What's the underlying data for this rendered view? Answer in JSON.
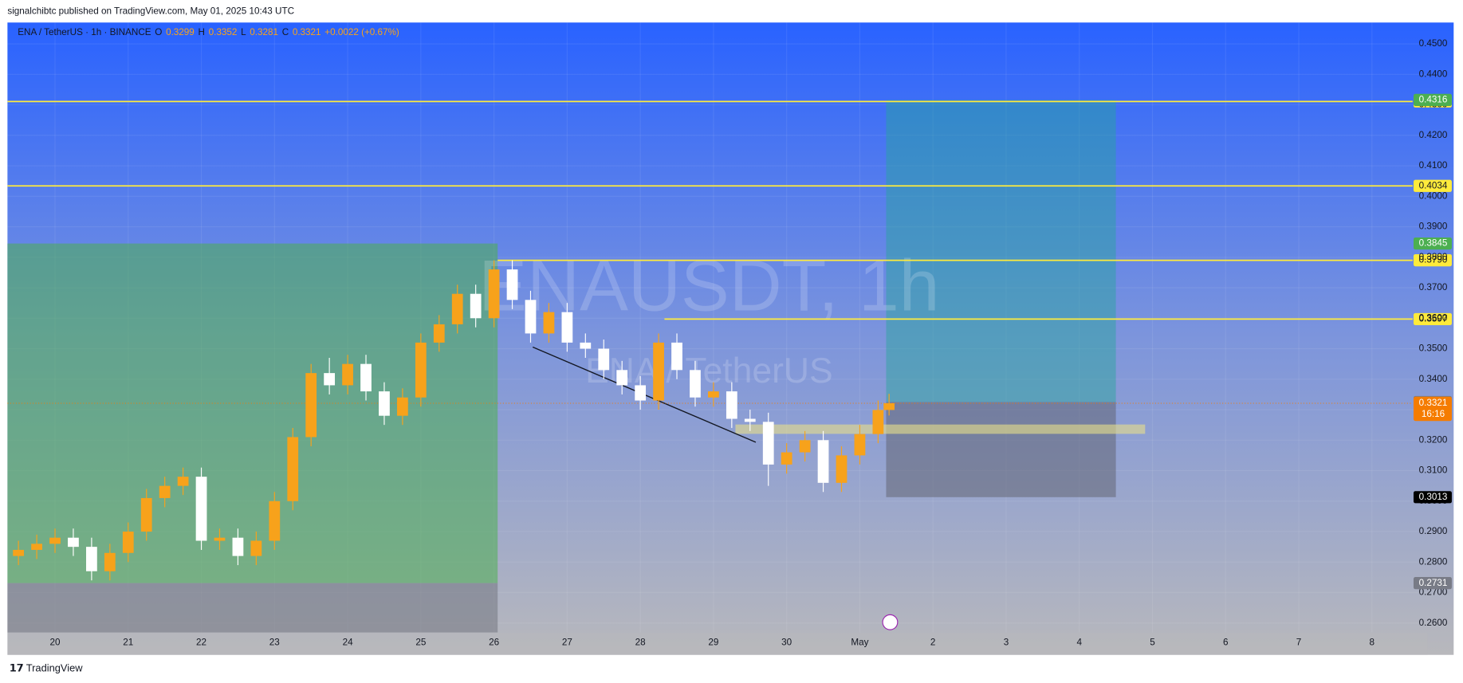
{
  "header": {
    "publisher": "signalchibtc published on TradingView.com, May 01, 2025 10:43 UTC",
    "footer": "TradingView"
  },
  "chart_data": {
    "type": "candlestick",
    "symbol": "ENA / TetherUS · 1h · BINANCE",
    "o_label": "O",
    "h_label": "H",
    "l_label": "L",
    "c_label": "C",
    "change": "+0.0022 (+0.67%)",
    "watermark": "ENAUSDT, 1h",
    "watermark_sub": "ENA / TetherUS",
    "up_color": "#f7a21b",
    "down_color": "#ffffff",
    "x": [
      -0.5,
      -0.25,
      0,
      0.25,
      0.5,
      0.75,
      1,
      1.25,
      1.5,
      1.75,
      2,
      2.25,
      2.5,
      2.75,
      3,
      3.25,
      3.5,
      3.75,
      4,
      4.25,
      4.5,
      4.75,
      5,
      5.25,
      5.5,
      5.75,
      6,
      6.25,
      6.5,
      6.75,
      7,
      7.25,
      7.5,
      7.75,
      8,
      8.25,
      8.5,
      8.75,
      9,
      9.25,
      9.5,
      9.75,
      10,
      10.25,
      10.5,
      10.75,
      11,
      11.25,
      11.4
    ],
    "open": [
      0.282,
      0.284,
      0.286,
      0.288,
      0.285,
      0.277,
      0.283,
      0.29,
      0.301,
      0.305,
      0.308,
      0.287,
      0.288,
      0.282,
      0.287,
      0.3,
      0.321,
      0.342,
      0.338,
      0.345,
      0.336,
      0.328,
      0.334,
      0.352,
      0.358,
      0.368,
      0.36,
      0.376,
      0.366,
      0.355,
      0.362,
      0.352,
      0.35,
      0.343,
      0.338,
      0.333,
      0.352,
      0.343,
      0.334,
      0.336,
      0.327,
      0.326,
      0.312,
      0.316,
      0.32,
      0.306,
      0.315,
      0.322,
      0.3299
    ],
    "high": [
      0.287,
      0.289,
      0.291,
      0.291,
      0.288,
      0.286,
      0.293,
      0.304,
      0.308,
      0.311,
      0.311,
      0.291,
      0.291,
      0.29,
      0.303,
      0.324,
      0.345,
      0.347,
      0.348,
      0.348,
      0.339,
      0.337,
      0.355,
      0.361,
      0.371,
      0.371,
      0.379,
      0.379,
      0.369,
      0.365,
      0.365,
      0.355,
      0.353,
      0.346,
      0.341,
      0.355,
      0.355,
      0.346,
      0.339,
      0.339,
      0.33,
      0.329,
      0.319,
      0.323,
      0.323,
      0.318,
      0.325,
      0.333,
      0.3352
    ],
    "low": [
      0.279,
      0.281,
      0.283,
      0.282,
      0.274,
      0.274,
      0.28,
      0.287,
      0.298,
      0.302,
      0.284,
      0.284,
      0.279,
      0.279,
      0.284,
      0.297,
      0.318,
      0.335,
      0.335,
      0.333,
      0.325,
      0.325,
      0.331,
      0.349,
      0.355,
      0.357,
      0.357,
      0.363,
      0.352,
      0.352,
      0.349,
      0.347,
      0.34,
      0.335,
      0.33,
      0.33,
      0.34,
      0.331,
      0.331,
      0.324,
      0.323,
      0.305,
      0.309,
      0.313,
      0.303,
      0.303,
      0.312,
      0.319,
      0.3281
    ],
    "close": [
      0.284,
      0.286,
      0.288,
      0.285,
      0.277,
      0.283,
      0.29,
      0.301,
      0.305,
      0.308,
      0.287,
      0.288,
      0.282,
      0.287,
      0.3,
      0.321,
      0.342,
      0.338,
      0.345,
      0.336,
      0.328,
      0.334,
      0.352,
      0.358,
      0.368,
      0.36,
      0.376,
      0.366,
      0.355,
      0.362,
      0.352,
      0.35,
      0.343,
      0.338,
      0.333,
      0.352,
      0.343,
      0.334,
      0.336,
      0.327,
      0.326,
      0.312,
      0.316,
      0.32,
      0.306,
      0.315,
      0.322,
      0.3299,
      0.3321
    ],
    "xlim": [
      -0.65,
      18.76
    ],
    "ylim": [
      0.2569,
      0.457
    ],
    "xticks": [
      {
        "value": 0,
        "label": "20"
      },
      {
        "value": 1,
        "label": "21"
      },
      {
        "value": 2,
        "label": "22"
      },
      {
        "value": 3,
        "label": "23"
      },
      {
        "value": 4,
        "label": "24"
      },
      {
        "value": 5,
        "label": "25"
      },
      {
        "value": 6,
        "label": "26"
      },
      {
        "value": 7,
        "label": "27"
      },
      {
        "value": 8,
        "label": "28"
      },
      {
        "value": 9,
        "label": "29"
      },
      {
        "value": 10,
        "label": "30"
      },
      {
        "value": 11,
        "label": "May"
      },
      {
        "value": 12,
        "label": "2"
      },
      {
        "value": 13,
        "label": "3"
      },
      {
        "value": 14,
        "label": "4"
      },
      {
        "value": 15,
        "label": "5"
      },
      {
        "value": 16,
        "label": "6"
      },
      {
        "value": 17,
        "label": "7"
      },
      {
        "value": 18,
        "label": "8"
      }
    ],
    "yticks": [
      {
        "value": 0.26,
        "label": "0.2600"
      },
      {
        "value": 0.27,
        "label": "0.2700"
      },
      {
        "value": 0.28,
        "label": "0.2800"
      },
      {
        "value": 0.29,
        "label": "0.2900"
      },
      {
        "value": 0.3,
        "label": "0.3000"
      },
      {
        "value": 0.31,
        "label": "0.3100"
      },
      {
        "value": 0.32,
        "label": "0.3200"
      },
      {
        "value": 0.33,
        "label": "0.3300"
      },
      {
        "value": 0.34,
        "label": "0.3400"
      },
      {
        "value": 0.35,
        "label": "0.3500"
      },
      {
        "value": 0.36,
        "label": "0.3600"
      },
      {
        "value": 0.37,
        "label": "0.3700"
      },
      {
        "value": 0.38,
        "label": "0.3800"
      },
      {
        "value": 0.39,
        "label": "0.3900"
      },
      {
        "value": 0.4,
        "label": "0.4000"
      },
      {
        "value": 0.41,
        "label": "0.4100"
      },
      {
        "value": 0.42,
        "label": "0.4200"
      },
      {
        "value": 0.43,
        "label": "0.4300"
      },
      {
        "value": 0.44,
        "label": "0.4400"
      },
      {
        "value": 0.45,
        "label": "0.4500"
      }
    ],
    "hlines": [
      {
        "value": 0.4311,
        "color": "#ffeb3b"
      },
      {
        "value": 0.4034,
        "color": "#ffeb3b"
      },
      {
        "value": 0.379,
        "label": "0.3790",
        "color": "#ffeb3b"
      },
      {
        "value": 0.3597,
        "color": "#ffeb3b"
      }
    ],
    "price_labels": [
      {
        "value": 0.4316,
        "color": "#4caf50"
      },
      {
        "value": 0.3845,
        "color": "#4caf50"
      },
      {
        "value": 0.3325,
        "color": "#787b86"
      },
      {
        "value": 0.3013,
        "color": "#000000"
      },
      {
        "value": 0.2731,
        "color": "#787b86"
      }
    ],
    "last_price": {
      "value": 0.3321,
      "countdown": "16:16",
      "color": "#f57c00"
    }
  }
}
